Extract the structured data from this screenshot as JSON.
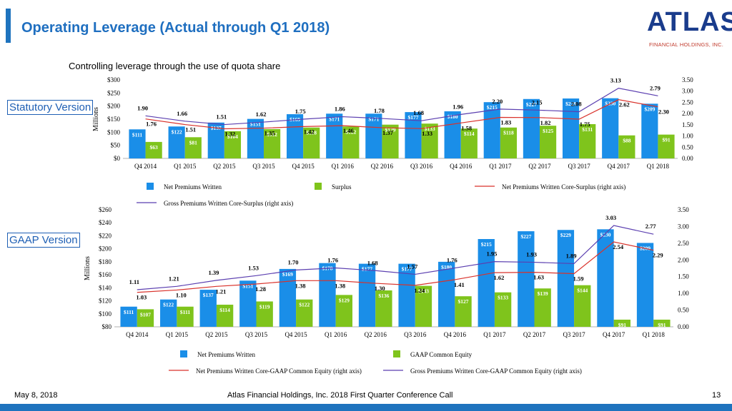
{
  "header": {
    "title": "Operating Leverage (Actual through Q1 2018)",
    "subtitle": "Controlling leverage through the use of quota share"
  },
  "logo": {
    "name": "ATLAS",
    "tagline": "FINANCIAL HOLDINGS, INC."
  },
  "footer": {
    "date": "May 8, 2018",
    "center": "Atlas Financial Holdings, Inc. 2018 First Quarter Conference Call",
    "page": "13"
  },
  "colors": {
    "bar_primary": "#1a8ee8",
    "bar_secondary": "#7fc41c",
    "line_red": "#d9322b",
    "line_purple": "#5b3fb0",
    "title": "#1f6fc0"
  },
  "chart_data": [
    {
      "type": "bar",
      "section_label": "Statutory Version",
      "ylabel": "Millions",
      "y_ticks": [
        "$0",
        "$50",
        "$100",
        "$150",
        "$200",
        "$250",
        "$300"
      ],
      "y2_ticks": [
        "0.00",
        "0.50",
        "1.00",
        "1.50",
        "2.00",
        "2.50",
        "3.00",
        "3.50"
      ],
      "ylim": [
        0,
        300
      ],
      "y2lim": [
        0,
        3.5
      ],
      "categories": [
        "Q4 2014",
        "Q1 2015",
        "Q2 2015",
        "Q3 2015",
        "Q4 2015",
        "Q1 2016",
        "Q2 2016",
        "Q3 2016",
        "Q4 2016",
        "Q1 2017",
        "Q2 2017",
        "Q3 2017",
        "Q4 2017",
        "Q1 2018"
      ],
      "series": [
        {
          "name": "Net Premiums Written",
          "kind": "bar",
          "color": "#1a8ee8",
          "values": [
            111,
            122,
            137,
            151,
            169,
            171,
            171,
            177,
            180,
            215,
            227,
            229,
            230,
            209
          ],
          "labels": [
            "$111",
            "$122",
            "$137",
            "$151",
            "$169",
            "$171",
            "$171",
            "$177",
            "$180",
            "$215",
            "$227",
            "$229",
            "$230",
            "$209"
          ]
        },
        {
          "name": "Surplus",
          "kind": "bar",
          "color": "#7fc41c",
          "values": [
            63,
            81,
            104,
            112,
            118,
            122,
            129,
            133,
            114,
            118,
            125,
            131,
            88,
            91
          ],
          "labels": [
            "$63",
            "$81",
            "$104",
            "$112",
            "$118",
            "$122",
            "$129",
            "$133",
            "$114",
            "$118",
            "$125",
            "$131",
            "$88",
            "$91"
          ]
        },
        {
          "name": "Net Premiums Written Core-Surplus (right axis)",
          "kind": "line",
          "axis": "right",
          "color": "#d9322b",
          "values": [
            1.76,
            1.51,
            1.32,
            1.35,
            1.42,
            1.46,
            1.37,
            1.33,
            1.58,
            1.83,
            1.82,
            1.75,
            2.62,
            2.3
          ],
          "labels": [
            "1.76",
            "1.51",
            "1.32",
            "1.35",
            "1.42",
            "1.46",
            "1.37",
            "1.33",
            "1.58",
            "1.83",
            "1.82",
            "1.75",
            "2.62",
            "2.30"
          ]
        },
        {
          "name": "Gross Premiums Written Core-Surplus (right axis)",
          "kind": "line",
          "axis": "right",
          "color": "#5b3fb0",
          "values": [
            1.9,
            1.66,
            1.51,
            1.62,
            1.75,
            1.86,
            1.78,
            1.68,
            1.96,
            2.2,
            2.15,
            2.08,
            3.13,
            2.79
          ],
          "labels": [
            "1.90",
            "1.66",
            "1.51",
            "1.62",
            "1.75",
            "1.86",
            "1.78",
            "1.68",
            "1.96",
            "2.20",
            "2.15",
            "2.08",
            "3.13",
            "2.79"
          ]
        }
      ]
    },
    {
      "type": "bar",
      "section_label": "GAAP Version",
      "ylabel": "Millions",
      "y_ticks": [
        "$80",
        "$100",
        "$120",
        "$140",
        "$160",
        "$180",
        "$200",
        "$220",
        "$240",
        "$260"
      ],
      "y2_ticks": [
        "0.00",
        "0.50",
        "1.00",
        "1.50",
        "2.00",
        "2.50",
        "3.00",
        "3.50"
      ],
      "ylim": [
        80,
        260
      ],
      "y2lim": [
        0,
        3.5
      ],
      "categories": [
        "Q4 2014",
        "Q1 2015",
        "Q2 2015",
        "Q3 2015",
        "Q4 2015",
        "Q1 2016",
        "Q2 2016",
        "Q3 2016",
        "Q4 2016",
        "Q1 2017",
        "Q2 2017",
        "Q3 2017",
        "Q4 2017",
        "Q1 2018"
      ],
      "series": [
        {
          "name": "Net Premiums Written",
          "kind": "bar",
          "color": "#1a8ee8",
          "values": [
            111,
            122,
            137,
            151,
            169,
            178,
            177,
            177,
            180,
            215,
            227,
            229,
            230,
            209
          ],
          "labels": [
            "$111",
            "$122",
            "$137",
            "$151",
            "$169",
            "$178",
            "$177",
            "$177",
            "$180",
            "$215",
            "$227",
            "$229",
            "$230",
            "$209"
          ]
        },
        {
          "name": "GAAP Common Equity",
          "kind": "bar",
          "color": "#7fc41c",
          "values": [
            107,
            111,
            114,
            119,
            122,
            129,
            136,
            143,
            127,
            133,
            139,
            144,
            91,
            91
          ],
          "labels": [
            "$107",
            "$111",
            "$114",
            "$119",
            "$122",
            "$129",
            "$136",
            "$143",
            "$127",
            "$133",
            "$139",
            "$144",
            "$91",
            "$91"
          ]
        },
        {
          "name": "Net Premiums Written Core-GAAP Common Equity (right axis)",
          "kind": "line",
          "axis": "right",
          "color": "#d9322b",
          "values": [
            1.03,
            1.1,
            1.21,
            1.28,
            1.38,
            1.38,
            1.3,
            1.24,
            1.41,
            1.62,
            1.63,
            1.59,
            2.54,
            2.29
          ],
          "labels": [
            "1.03",
            "1.10",
            "1.21",
            "1.28",
            "1.38",
            "1.38",
            "1.30",
            "1.24",
            "1.41",
            "1.62",
            "1.63",
            "1.59",
            "2.54",
            "2.29"
          ]
        },
        {
          "name": "Gross Premiums Written Core-GAAP Common Equity (right axis)",
          "kind": "line",
          "axis": "right",
          "color": "#5b3fb0",
          "values": [
            1.11,
            1.21,
            1.39,
            1.53,
            1.7,
            1.76,
            1.68,
            1.57,
            1.76,
            1.95,
            1.93,
            1.89,
            3.03,
            2.77
          ],
          "labels": [
            "1.11",
            "1.21",
            "1.39",
            "1.53",
            "1.70",
            "1.76",
            "1.68",
            "1.57",
            "1.76",
            "1.95",
            "1.93",
            "1.89",
            "3.03",
            "2.77"
          ]
        }
      ]
    }
  ]
}
